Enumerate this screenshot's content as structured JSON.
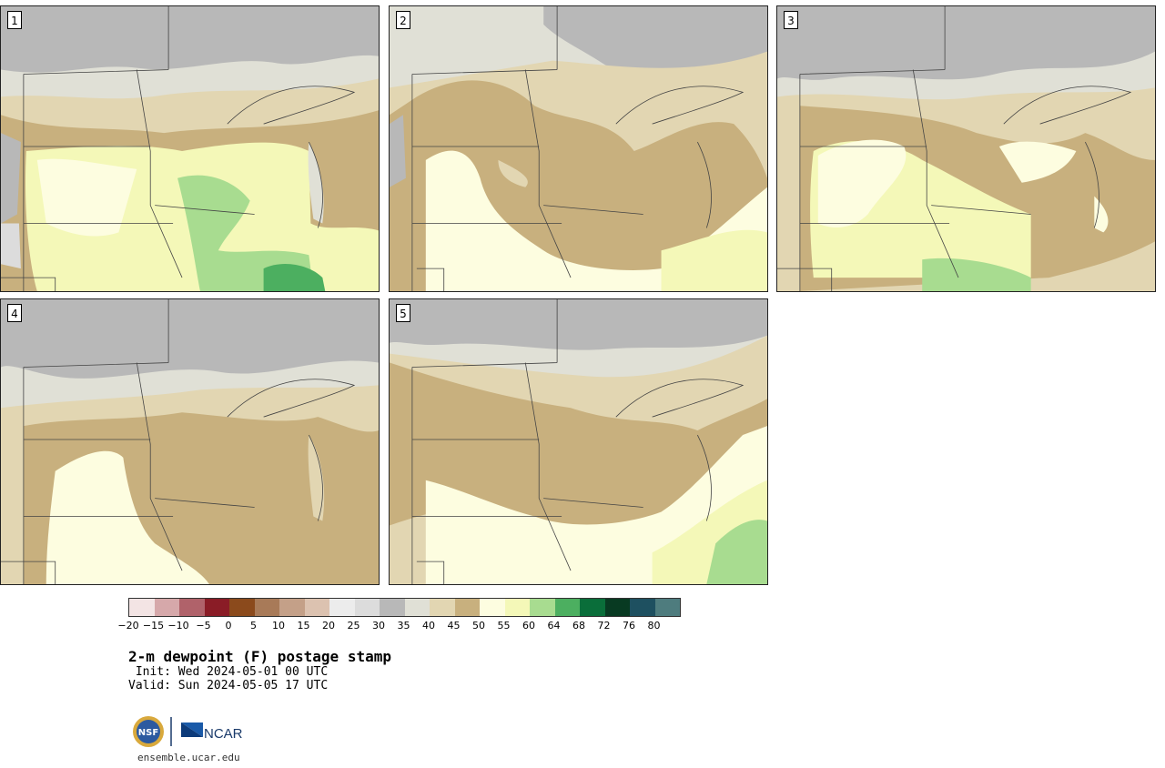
{
  "panels": [
    {
      "id": "1",
      "label": "1"
    },
    {
      "id": "2",
      "label": "2"
    },
    {
      "id": "3",
      "label": "3"
    },
    {
      "id": "4",
      "label": "4"
    },
    {
      "id": "5",
      "label": "5"
    }
  ],
  "colorbar": {
    "colors": [
      "#f3e4e4",
      "#d6a8aa",
      "#b0626a",
      "#8a1c26",
      "#8b4a1c",
      "#a87a58",
      "#c4a088",
      "#dcc2b0",
      "#ececec",
      "#dcdcdc",
      "#b8b8b8",
      "#e0e0d6",
      "#e2d6b2",
      "#c8b07e",
      "#fdfde0",
      "#f4f8b8",
      "#a8dc90",
      "#4caf60",
      "#0a6e3a",
      "#083a22",
      "#1e5060",
      "#4e7c7e"
    ],
    "ticks": [
      "−20",
      "−15",
      "−10",
      "−5",
      "0",
      "5",
      "10",
      "15",
      "20",
      "25",
      "30",
      "35",
      "40",
      "45",
      "50",
      "55",
      "60",
      "64",
      "68",
      "72",
      "76",
      "80"
    ]
  },
  "title": "2-m dewpoint (F) postage stamp",
  "init": " Init: Wed 2024-05-01 00 UTC",
  "valid": "Valid: Sun 2024-05-05 17 UTC",
  "logos": {
    "nsf": "NSF",
    "ncar": "NCAR"
  },
  "site": "ensemble.ucar.edu",
  "colors": {
    "gray_dark": "#b8b8b8",
    "gray_light": "#e0e0d6",
    "tan_light": "#e2d6b2",
    "tan_dark": "#c8b07e",
    "cream": "#fdfde0",
    "pale_yellow": "#f4f8b8",
    "light_green": "#a8dc90",
    "green": "#4caf60"
  }
}
